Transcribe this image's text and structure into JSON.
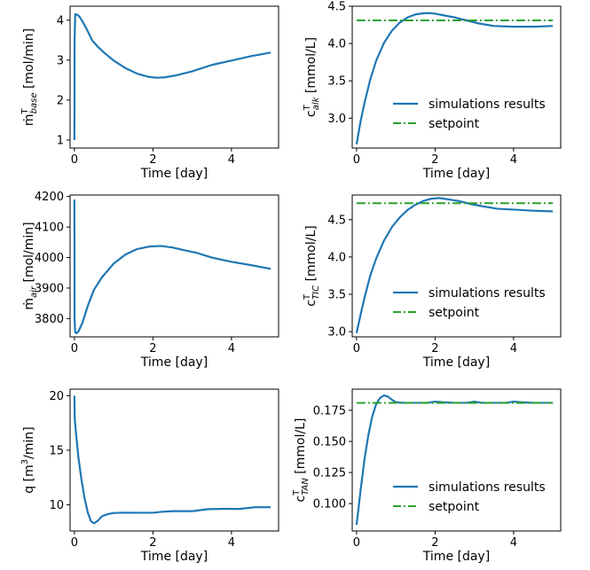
{
  "colors": {
    "series": "#1f77b4",
    "setpoint": "#2ca02c",
    "axis": "#000000",
    "background": "#ffffff"
  },
  "chart_data": [
    {
      "type": "line",
      "xlabel": "Time [day]",
      "ylabel": "ṁ",
      "ylabel_sup": "T",
      "ylabel_sub": "base",
      "ylabel_rest": " [mol/min]",
      "xlim": [
        -0.11,
        5.2
      ],
      "ylim": [
        0.8,
        4.35
      ],
      "xticks": [
        0,
        2,
        4
      ],
      "xtick_labels": [
        "0",
        "2",
        "4"
      ],
      "yticks": [
        1,
        2,
        3,
        4
      ],
      "ytick_labels": [
        "1",
        "2",
        "3",
        "4"
      ],
      "legend": null,
      "series": [
        {
          "kind": "sim",
          "x": [
            0,
            0.005,
            0.02,
            0.06,
            0.12,
            0.2,
            0.3,
            0.45,
            0.6,
            0.8,
            1.0,
            1.3,
            1.6,
            1.9,
            2.1,
            2.3,
            2.6,
            3.0,
            3.5,
            4.0,
            4.5,
            5.0
          ],
          "y": [
            1.0,
            3.5,
            4.15,
            4.14,
            4.1,
            3.98,
            3.8,
            3.5,
            3.33,
            3.15,
            2.99,
            2.8,
            2.66,
            2.58,
            2.56,
            2.57,
            2.62,
            2.72,
            2.88,
            2.99,
            3.1,
            3.19
          ]
        }
      ]
    },
    {
      "type": "line",
      "xlabel": "Time [day]",
      "ylabel": "c",
      "ylabel_sup": "T",
      "ylabel_sub": "alk",
      "ylabel_rest": " [mmol/L]",
      "xlim": [
        -0.11,
        5.2
      ],
      "ylim": [
        2.6,
        4.5
      ],
      "xticks": [
        0,
        2,
        4
      ],
      "xtick_labels": [
        "0",
        "2",
        "4"
      ],
      "yticks": [
        3.0,
        3.5,
        4.0,
        4.5
      ],
      "ytick_labels": [
        "3.0",
        "3.5",
        "4.0",
        "4.5"
      ],
      "legend": {
        "position": "lower-right",
        "entries": [
          "simulations results",
          "setpoint"
        ]
      },
      "series": [
        {
          "kind": "sim",
          "x": [
            0,
            0.1,
            0.2,
            0.35,
            0.5,
            0.7,
            0.9,
            1.1,
            1.3,
            1.5,
            1.7,
            1.85,
            2.0,
            2.2,
            2.5,
            2.8,
            3.1,
            3.5,
            4.0,
            4.5,
            5.0
          ],
          "y": [
            2.65,
            2.95,
            3.2,
            3.52,
            3.77,
            4.01,
            4.17,
            4.28,
            4.35,
            4.39,
            4.405,
            4.408,
            4.4,
            4.38,
            4.35,
            4.31,
            4.27,
            4.235,
            4.225,
            4.225,
            4.235
          ]
        },
        {
          "kind": "setpoint",
          "x": [
            0,
            5.0
          ],
          "y": [
            4.31,
            4.31
          ]
        }
      ]
    },
    {
      "type": "line",
      "xlabel": "Time [day]",
      "ylabel": "ṁ",
      "ylabel_sup": "",
      "ylabel_sub": "air",
      "ylabel_rest": " [mol/min]",
      "xlim": [
        -0.11,
        5.2
      ],
      "ylim": [
        3740,
        4205
      ],
      "xticks": [
        0,
        2,
        4
      ],
      "xtick_labels": [
        "0",
        "2",
        "4"
      ],
      "yticks": [
        3800,
        3900,
        4000,
        4100,
        4200
      ],
      "ytick_labels": [
        "3800",
        "3900",
        "4000",
        "4100",
        "4200"
      ],
      "legend": null,
      "series": [
        {
          "kind": "sim",
          "x": [
            0,
            0.004,
            0.02,
            0.05,
            0.1,
            0.2,
            0.35,
            0.5,
            0.7,
            1.0,
            1.3,
            1.6,
            1.9,
            2.2,
            2.5,
            2.8,
            3.1,
            3.5,
            4.0,
            4.5,
            5.0
          ],
          "y": [
            4190,
            3800,
            3755,
            3752,
            3757,
            3785,
            3845,
            3895,
            3935,
            3980,
            4010,
            4028,
            4036,
            4038,
            4033,
            4024,
            4016,
            4000,
            3986,
            3975,
            3963
          ]
        }
      ]
    },
    {
      "type": "line",
      "xlabel": "Time [day]",
      "ylabel": "c",
      "ylabel_sup": "T",
      "ylabel_sub": "TIC",
      "ylabel_rest": " [mmol/L]",
      "xlim": [
        -0.11,
        5.2
      ],
      "ylim": [
        2.93,
        4.83
      ],
      "xticks": [
        0,
        2,
        4
      ],
      "xtick_labels": [
        "0",
        "2",
        "4"
      ],
      "yticks": [
        3.0,
        3.5,
        4.0,
        4.5
      ],
      "ytick_labels": [
        "3.0",
        "3.5",
        "4.0",
        "4.5"
      ],
      "legend": {
        "position": "lower-right",
        "entries": [
          "simulations results",
          "setpoint"
        ]
      },
      "series": [
        {
          "kind": "sim",
          "x": [
            0,
            0.1,
            0.2,
            0.35,
            0.5,
            0.7,
            0.9,
            1.1,
            1.3,
            1.5,
            1.7,
            1.9,
            2.1,
            2.3,
            2.6,
            2.9,
            3.2,
            3.6,
            4.0,
            4.5,
            5.0
          ],
          "y": [
            2.98,
            3.22,
            3.45,
            3.75,
            3.98,
            4.22,
            4.4,
            4.53,
            4.63,
            4.7,
            4.75,
            4.78,
            4.79,
            4.775,
            4.75,
            4.71,
            4.68,
            4.645,
            4.635,
            4.62,
            4.61
          ]
        },
        {
          "kind": "setpoint",
          "x": [
            0,
            5.0
          ],
          "y": [
            4.72,
            4.72
          ]
        }
      ]
    },
    {
      "type": "line",
      "xlabel": "Time [day]",
      "ylabel": "q [m",
      "ylabel_sup": "3",
      "ylabel_sub": "",
      "ylabel_rest": "/min]",
      "xlim": [
        -0.11,
        5.2
      ],
      "ylim": [
        7.6,
        20.6
      ],
      "xticks": [
        0,
        2,
        4
      ],
      "xtick_labels": [
        "0",
        "2",
        "4"
      ],
      "yticks": [
        10,
        15,
        20
      ],
      "ytick_labels": [
        "10",
        "15",
        "20"
      ],
      "legend": null,
      "series": [
        {
          "kind": "sim",
          "x": [
            0,
            0.01,
            0.04,
            0.1,
            0.18,
            0.26,
            0.34,
            0.42,
            0.5,
            0.6,
            0.7,
            0.85,
            1.0,
            1.3,
            1.6,
            2.0,
            2.2,
            2.5,
            3.0,
            3.4,
            3.8,
            4.2,
            4.6,
            5.0
          ],
          "y": [
            20.0,
            17.8,
            16.6,
            14.4,
            12.3,
            10.6,
            9.3,
            8.5,
            8.3,
            8.55,
            8.95,
            9.15,
            9.25,
            9.28,
            9.27,
            9.27,
            9.35,
            9.42,
            9.42,
            9.6,
            9.63,
            9.62,
            9.78,
            9.78
          ]
        }
      ]
    },
    {
      "type": "line",
      "xlabel": "Time [day]",
      "ylabel": "c",
      "ylabel_sup": "T",
      "ylabel_sub": "TAN",
      "ylabel_rest": " [mmol/L]",
      "xlim": [
        -0.11,
        5.2
      ],
      "ylim": [
        0.078,
        0.192
      ],
      "xticks": [
        0,
        2,
        4
      ],
      "xtick_labels": [
        "0",
        "2",
        "4"
      ],
      "yticks": [
        0.1,
        0.125,
        0.15,
        0.175
      ],
      "ytick_labels": [
        "0.100",
        "0.125",
        "0.150",
        "0.175"
      ],
      "legend": {
        "position": "lower-right",
        "entries": [
          "simulations results",
          "setpoint"
        ]
      },
      "series": [
        {
          "kind": "sim",
          "x": [
            0,
            0.05,
            0.1,
            0.2,
            0.3,
            0.4,
            0.5,
            0.6,
            0.7,
            0.8,
            0.9,
            1.0,
            1.2,
            1.5,
            1.8,
            2.0,
            2.2,
            2.5,
            2.8,
            3.0,
            3.2,
            3.5,
            3.8,
            4.0,
            4.2,
            4.5,
            5.0
          ],
          "y": [
            0.083,
            0.096,
            0.11,
            0.135,
            0.155,
            0.17,
            0.18,
            0.185,
            0.187,
            0.186,
            0.1835,
            0.1815,
            0.181,
            0.181,
            0.181,
            0.182,
            0.1815,
            0.181,
            0.181,
            0.182,
            0.181,
            0.181,
            0.181,
            0.182,
            0.1815,
            0.181,
            0.181
          ]
        },
        {
          "kind": "setpoint",
          "x": [
            0,
            5.0
          ],
          "y": [
            0.181,
            0.181
          ]
        }
      ]
    }
  ]
}
